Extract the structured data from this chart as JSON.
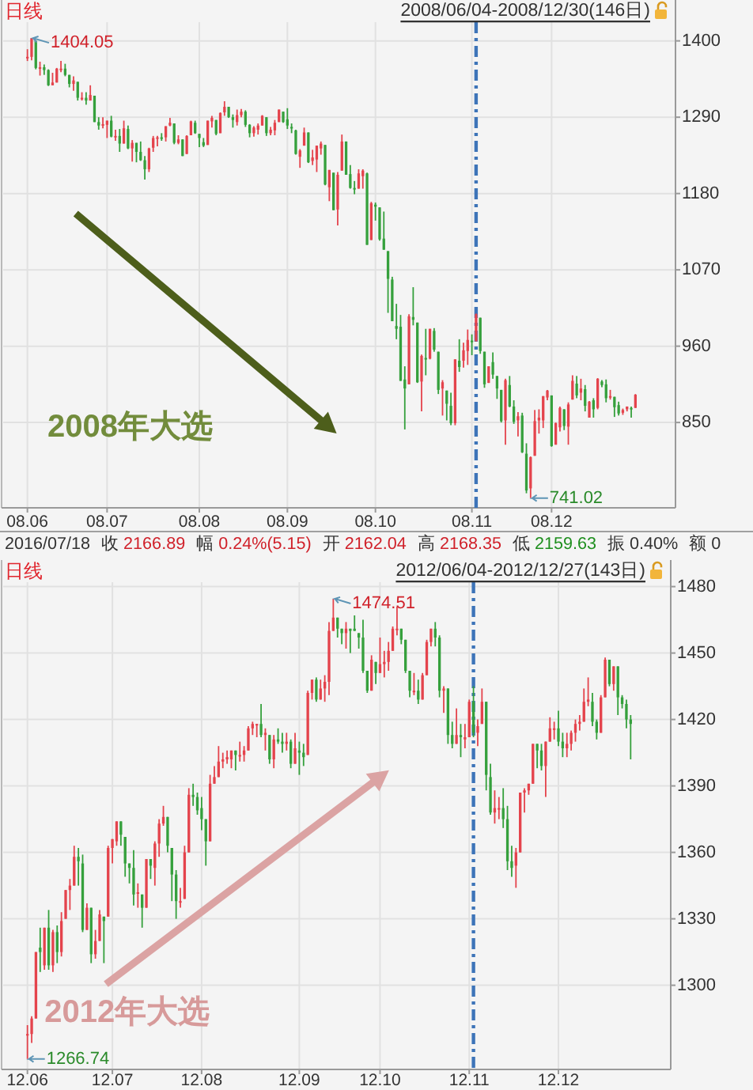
{
  "chart_data": [
    {
      "type": "candlestick",
      "title": "日线",
      "subtitle": "2008/06/04-2008/12/30(146日)",
      "categories": [
        "08.06",
        null,
        null,
        null,
        null,
        null,
        null,
        null,
        null,
        null,
        null,
        null,
        null,
        null,
        null,
        null,
        null,
        null,
        null,
        "08.07",
        null,
        null,
        null,
        null,
        null,
        null,
        null,
        null,
        null,
        null,
        null,
        null,
        null,
        null,
        null,
        null,
        null,
        null,
        null,
        null,
        null,
        "08.08",
        null,
        null,
        null,
        null,
        null,
        null,
        null,
        null,
        null,
        null,
        null,
        null,
        null,
        null,
        null,
        null,
        null,
        null,
        null,
        null,
        "08.09",
        null,
        null,
        null,
        null,
        null,
        null,
        null,
        null,
        null,
        null,
        null,
        null,
        null,
        null,
        null,
        null,
        null,
        null,
        null,
        null,
        "08.10",
        null,
        null,
        null,
        null,
        null,
        null,
        null,
        null,
        null,
        null,
        null,
        null,
        null,
        null,
        null,
        null,
        null,
        null,
        null,
        null,
        null,
        null,
        "08.11",
        null,
        null,
        null,
        null,
        null,
        null,
        null,
        null,
        null,
        null,
        null,
        null,
        null,
        null,
        null,
        null,
        null,
        null,
        "08.12",
        null,
        null,
        null,
        null,
        null,
        null,
        null,
        null,
        null,
        null,
        null,
        null,
        null,
        null,
        null,
        null,
        null,
        null,
        null,
        null
      ],
      "ohlc": [
        [
          1376,
          1388,
          1371,
          1377
        ],
        [
          1377,
          1404.05,
          1372,
          1404
        ],
        [
          1400,
          1401,
          1359,
          1361
        ],
        [
          1360,
          1370,
          1350,
          1362
        ],
        [
          1362,
          1366,
          1351,
          1358
        ],
        [
          1358,
          1359,
          1335,
          1336
        ],
        [
          1336,
          1354,
          1336,
          1340
        ],
        [
          1340,
          1361,
          1340,
          1360
        ],
        [
          1358,
          1371,
          1355,
          1360
        ],
        [
          1360,
          1367,
          1349,
          1351
        ],
        [
          1351,
          1351,
          1333,
          1338
        ],
        [
          1338,
          1349,
          1328,
          1343
        ],
        [
          1341,
          1341,
          1314,
          1318
        ],
        [
          1318,
          1326,
          1314,
          1318
        ],
        [
          1318,
          1326,
          1308,
          1314
        ],
        [
          1314,
          1336,
          1314,
          1322
        ],
        [
          1321,
          1321,
          1283,
          1283
        ],
        [
          1283,
          1290,
          1272,
          1278
        ],
        [
          1278,
          1290,
          1274,
          1280
        ],
        [
          1279,
          1285,
          1260,
          1285
        ],
        [
          1285,
          1292,
          1261,
          1262
        ],
        [
          1262,
          1272,
          1256,
          1263
        ],
        [
          1263,
          1273,
          1240,
          1252
        ],
        [
          1252,
          1285,
          1252,
          1274
        ],
        [
          1273,
          1278,
          1244,
          1245
        ],
        [
          1245,
          1257,
          1226,
          1253
        ],
        [
          1253,
          1253,
          1225,
          1240
        ],
        [
          1240,
          1255,
          1227,
          1228
        ],
        [
          1228,
          1234,
          1200,
          1215
        ],
        [
          1215,
          1246,
          1211,
          1245
        ],
        [
          1246,
          1263,
          1240,
          1260
        ],
        [
          1260,
          1263,
          1248,
          1261
        ],
        [
          1261,
          1267,
          1256,
          1260
        ],
        [
          1261,
          1277,
          1255,
          1277
        ],
        [
          1278,
          1289,
          1277,
          1282
        ],
        [
          1281,
          1281,
          1251,
          1253
        ],
        [
          1253,
          1264,
          1251,
          1258
        ],
        [
          1258,
          1258,
          1234,
          1234
        ],
        [
          1237,
          1264,
          1237,
          1263
        ],
        [
          1264,
          1285,
          1264,
          1284
        ],
        [
          1282,
          1285,
          1266,
          1267
        ],
        [
          1266,
          1266,
          1247,
          1260
        ],
        [
          1254,
          1260,
          1247,
          1249
        ],
        [
          1250,
          1285,
          1250,
          1285
        ],
        [
          1284,
          1292,
          1275,
          1289
        ],
        [
          1286,
          1286,
          1264,
          1266
        ],
        [
          1267,
          1297,
          1267,
          1296
        ],
        [
          1297,
          1313,
          1292,
          1305
        ],
        [
          1305,
          1305,
          1289,
          1290
        ],
        [
          1290,
          1294,
          1275,
          1286
        ],
        [
          1283,
          1301,
          1278,
          1293
        ],
        [
          1293,
          1302,
          1290,
          1298
        ],
        [
          1298,
          1300,
          1276,
          1279
        ],
        [
          1279,
          1280,
          1261,
          1267
        ],
        [
          1267,
          1277,
          1262,
          1275
        ],
        [
          1272,
          1281,
          1265,
          1278
        ],
        [
          1278,
          1293,
          1278,
          1292
        ],
        [
          1290,
          1290,
          1263,
          1267
        ],
        [
          1267,
          1276,
          1264,
          1272
        ],
        [
          1271,
          1286,
          1264,
          1282
        ],
        [
          1283,
          1301,
          1283,
          1301
        ],
        [
          1298,
          1298,
          1282,
          1283
        ],
        [
          1287,
          1303,
          1273,
          1278
        ],
        [
          1276,
          1281,
          1267,
          1275
        ],
        [
          1271,
          1272,
          1236,
          1237
        ],
        [
          1233,
          1244,
          1217,
          1242
        ],
        [
          1249,
          1275,
          1249,
          1268
        ],
        [
          1268,
          1268,
          1224,
          1225
        ],
        [
          1227,
          1243,
          1221,
          1232
        ],
        [
          1229,
          1249,
          1211,
          1249
        ],
        [
          1245,
          1255,
          1236,
          1252
        ],
        [
          1250,
          1250,
          1192,
          1193
        ],
        [
          1189,
          1214,
          1169,
          1214
        ],
        [
          1210,
          1210,
          1156,
          1156
        ],
        [
          1157,
          1211,
          1134,
          1207
        ],
        [
          1213,
          1265,
          1213,
          1255
        ],
        [
          1255,
          1255,
          1207,
          1207
        ],
        [
          1208,
          1221,
          1187,
          1188
        ],
        [
          1188,
          1198,
          1179,
          1186
        ],
        [
          1187,
          1215,
          1187,
          1209
        ],
        [
          1205,
          1215,
          1187,
          1213
        ],
        [
          1209,
          1210,
          1106,
          1106
        ],
        [
          1113,
          1168,
          1113,
          1166
        ],
        [
          1164,
          1167,
          1141,
          1161
        ],
        [
          1160,
          1160,
          1112,
          1114
        ],
        [
          1115,
          1154,
          1099,
          1099
        ],
        [
          1097,
          1097,
          1008,
          1057
        ],
        [
          1056,
          1060,
          996,
          996
        ],
        [
          989,
          1021,
          970,
          985
        ],
        [
          988,
          1005,
          910,
          910
        ],
        [
          912,
          931,
          840,
          899
        ],
        [
          905,
          1006,
          905,
          1003
        ],
        [
          1002,
          1045,
          990,
          998
        ],
        [
          994,
          994,
          907,
          908
        ],
        [
          909,
          948,
          866,
          946
        ],
        [
          943,
          985,
          918,
          941
        ],
        [
          942,
          985,
          941,
          985
        ],
        [
          982,
          986,
          952,
          955
        ],
        [
          952,
          952,
          891,
          897
        ],
        [
          899,
          911,
          860,
          908
        ],
        [
          896,
          896,
          853,
          877
        ],
        [
          874,
          893,
          846,
          849
        ],
        [
          849,
          941,
          846,
          941
        ],
        [
          939,
          970,
          923,
          930
        ],
        [
          939,
          965,
          929,
          954
        ],
        [
          953,
          984,
          933,
          969
        ],
        [
          968,
          977,
          947,
          966
        ],
        [
          967,
          1007,
          967,
          1006
        ],
        [
          1001,
          1001,
          949,
          953
        ],
        [
          952,
          952,
          900,
          905
        ],
        [
          907,
          931,
          907,
          931
        ],
        [
          937,
          951,
          913,
          919
        ],
        [
          917,
          917,
          884,
          899
        ],
        [
          897,
          897,
          850,
          852
        ],
        [
          853,
          913,
          818,
          911
        ],
        [
          904,
          917,
          872,
          873
        ],
        [
          873,
          882,
          848,
          851
        ],
        [
          853,
          865,
          830,
          859
        ],
        [
          860,
          864,
          806,
          807
        ],
        [
          805,
          820,
          748,
          752
        ],
        [
          755,
          801,
          741.02,
          800
        ],
        [
          802,
          868,
          802,
          852
        ],
        [
          853,
          869,
          834,
          857
        ],
        [
          853,
          888,
          842,
          888
        ],
        [
          886,
          897,
          882,
          896
        ],
        [
          889,
          889,
          815,
          816
        ],
        [
          818,
          850,
          818,
          849
        ],
        [
          843,
          873,
          837,
          871
        ],
        [
          869,
          869,
          839,
          845
        ],
        [
          844,
          879,
          818,
          876
        ],
        [
          883,
          918,
          883,
          910
        ],
        [
          906,
          917,
          885,
          889
        ],
        [
          893,
          913,
          882,
          899
        ],
        [
          898,
          904,
          866,
          874
        ],
        [
          857,
          881,
          857,
          880
        ],
        [
          882,
          885,
          857,
          869
        ],
        [
          871,
          914,
          869,
          913
        ],
        [
          909,
          911,
          901,
          904
        ],
        [
          905,
          912,
          879,
          885
        ],
        [
          886,
          897,
          883,
          888
        ],
        [
          887,
          887,
          858,
          872
        ],
        [
          875,
          880,
          860,
          863
        ],
        [
          864,
          870,
          861,
          868
        ],
        [
          869,
          873,
          866,
          873
        ],
        [
          871,
          873,
          857,
          869
        ],
        [
          871,
          891,
          871,
          890
        ]
      ],
      "ylim": [
        727,
        1427
      ],
      "yticks": [
        850,
        960,
        1070,
        1180,
        1290,
        1400
      ],
      "grid": true,
      "annotations": [
        "1404.05",
        "741.02",
        "2008年大选"
      ]
    },
    {
      "type": "candlestick",
      "title": "日线",
      "subtitle": "2012/06/04-2012/12/27(143日)",
      "categories": [
        "12.06",
        null,
        null,
        null,
        null,
        null,
        null,
        null,
        null,
        null,
        null,
        null,
        null,
        null,
        null,
        null,
        null,
        null,
        null,
        null,
        "12.07",
        null,
        null,
        null,
        null,
        null,
        null,
        null,
        null,
        null,
        null,
        null,
        null,
        null,
        null,
        null,
        null,
        null,
        null,
        null,
        null,
        "12.08",
        null,
        null,
        null,
        null,
        null,
        null,
        null,
        null,
        null,
        null,
        null,
        null,
        null,
        null,
        null,
        null,
        null,
        null,
        null,
        null,
        null,
        null,
        "12.09",
        null,
        null,
        null,
        null,
        null,
        null,
        null,
        null,
        null,
        null,
        null,
        null,
        null,
        null,
        null,
        null,
        null,
        null,
        "12.10",
        null,
        null,
        null,
        null,
        null,
        null,
        null,
        null,
        null,
        null,
        null,
        null,
        null,
        null,
        null,
        null,
        null,
        null,
        null,
        null,
        "12.11",
        null,
        null,
        null,
        null,
        null,
        null,
        null,
        null,
        null,
        null,
        null,
        null,
        null,
        null,
        null,
        null,
        null,
        null,
        null,
        null,
        "12.12",
        null,
        null,
        null,
        null,
        null,
        null,
        null,
        null,
        null,
        null,
        null,
        null,
        null,
        null,
        null,
        null,
        null
      ],
      "ohlc": [
        [
          1278,
          1282,
          1266.74,
          1278
        ],
        [
          1278,
          1286,
          1274,
          1285
        ],
        [
          1285,
          1315,
          1285,
          1315
        ],
        [
          1317,
          1326,
          1306,
          1315
        ],
        [
          1309,
          1326,
          1307,
          1326
        ],
        [
          1326,
          1334,
          1307,
          1309
        ],
        [
          1309,
          1325,
          1306,
          1324
        ],
        [
          1324,
          1327,
          1310,
          1315
        ],
        [
          1315,
          1333,
          1313,
          1329
        ],
        [
          1330,
          1343,
          1330,
          1343
        ],
        [
          1343,
          1348,
          1334,
          1345
        ],
        [
          1345,
          1363,
          1345,
          1358
        ],
        [
          1358,
          1362,
          1345,
          1356
        ],
        [
          1355,
          1359,
          1324,
          1325
        ],
        [
          1325,
          1337,
          1325,
          1335
        ],
        [
          1335,
          1335,
          1310,
          1314
        ],
        [
          1314,
          1325,
          1312,
          1320
        ],
        [
          1320,
          1334,
          1320,
          1332
        ],
        [
          1331,
          1331,
          1310,
          1329
        ],
        [
          1331,
          1363,
          1331,
          1362
        ],
        [
          1362,
          1366,
          1355,
          1366
        ],
        [
          1365,
          1374,
          1363,
          1374
        ],
        [
          1374,
          1374,
          1363,
          1368
        ],
        [
          1367,
          1367,
          1349,
          1355
        ],
        [
          1355,
          1355,
          1346,
          1353
        ],
        [
          1353,
          1361,
          1336,
          1341
        ],
        [
          1342,
          1346,
          1335,
          1342
        ],
        [
          1341,
          1341,
          1326,
          1335
        ],
        [
          1335,
          1357,
          1335,
          1357
        ],
        [
          1357,
          1357,
          1348,
          1354
        ],
        [
          1353,
          1365,
          1345,
          1364
        ],
        [
          1364,
          1375,
          1358,
          1373
        ],
        [
          1373,
          1381,
          1372,
          1376
        ],
        [
          1376,
          1376,
          1360,
          1363
        ],
        [
          1362,
          1362,
          1338,
          1350
        ],
        [
          1350,
          1352,
          1330,
          1338
        ],
        [
          1338,
          1344,
          1335,
          1338
        ],
        [
          1339,
          1363,
          1339,
          1360
        ],
        [
          1360,
          1389,
          1360,
          1386
        ],
        [
          1386,
          1391,
          1381,
          1385
        ],
        [
          1385,
          1387,
          1377,
          1379
        ],
        [
          1380,
          1385,
          1370,
          1375
        ],
        [
          1375,
          1375,
          1354,
          1365
        ],
        [
          1365,
          1395,
          1365,
          1391
        ],
        [
          1391,
          1399,
          1391,
          1394
        ],
        [
          1394,
          1408,
          1394,
          1401
        ],
        [
          1401,
          1405,
          1398,
          1402
        ],
        [
          1402,
          1406,
          1400,
          1403
        ],
        [
          1402,
          1406,
          1398,
          1406
        ],
        [
          1406,
          1406,
          1397,
          1404
        ],
        [
          1404,
          1410,
          1401,
          1404
        ],
        [
          1404,
          1408,
          1401,
          1406
        ],
        [
          1406,
          1417,
          1406,
          1416
        ],
        [
          1416,
          1419,
          1413,
          1418
        ],
        [
          1418,
          1418,
          1412,
          1418
        ],
        [
          1418,
          1427,
          1412,
          1413
        ],
        [
          1413,
          1416,
          1406,
          1414
        ],
        [
          1413,
          1413,
          1400,
          1402
        ],
        [
          1402,
          1413,
          1398,
          1411
        ],
        [
          1411,
          1416,
          1409,
          1410
        ],
        [
          1410,
          1414,
          1405,
          1409
        ],
        [
          1409,
          1414,
          1406,
          1410
        ],
        [
          1410,
          1411,
          1398,
          1400
        ],
        [
          1400,
          1414,
          1400,
          1407
        ],
        [
          1406,
          1410,
          1395,
          1405
        ],
        [
          1405,
          1409,
          1399,
          1403
        ],
        [
          1404,
          1433,
          1404,
          1432
        ],
        [
          1432,
          1438,
          1429,
          1438
        ],
        [
          1438,
          1439,
          1428,
          1429
        ],
        [
          1429,
          1438,
          1429,
          1434
        ],
        [
          1434,
          1440,
          1428,
          1437
        ],
        [
          1437,
          1464,
          1431,
          1460
        ],
        [
          1460,
          1474.51,
          1460,
          1466
        ],
        [
          1466,
          1466,
          1457,
          1461
        ],
        [
          1461,
          1461,
          1454,
          1459
        ],
        [
          1459,
          1464,
          1452,
          1461
        ],
        [
          1461,
          1461,
          1450,
          1460
        ],
        [
          1461,
          1467,
          1460,
          1460
        ],
        [
          1459,
          1459,
          1452,
          1457
        ],
        [
          1457,
          1465,
          1441,
          1442
        ],
        [
          1442,
          1442,
          1432,
          1433
        ],
        [
          1433,
          1449,
          1433,
          1447
        ],
        [
          1446,
          1446,
          1436,
          1441
        ],
        [
          1441,
          1457,
          1441,
          1445
        ],
        [
          1445,
          1451,
          1439,
          1446
        ],
        [
          1446,
          1455,
          1442,
          1451
        ],
        [
          1451,
          1462,
          1451,
          1461
        ],
        [
          1461,
          1471,
          1458,
          1461
        ],
        [
          1461,
          1461,
          1454,
          1456
        ],
        [
          1456,
          1456,
          1441,
          1442
        ],
        [
          1442,
          1442,
          1430,
          1433
        ],
        [
          1433,
          1441,
          1431,
          1433
        ],
        [
          1433,
          1438,
          1427,
          1429
        ],
        [
          1429,
          1441,
          1429,
          1440
        ],
        [
          1440,
          1456,
          1440,
          1455
        ],
        [
          1455,
          1461,
          1453,
          1461
        ],
        [
          1461,
          1464,
          1453,
          1457
        ],
        [
          1457,
          1458,
          1430,
          1433
        ],
        [
          1433,
          1435,
          1423,
          1434
        ],
        [
          1434,
          1434,
          1409,
          1413
        ],
        [
          1413,
          1419,
          1407,
          1409
        ],
        [
          1409,
          1425,
          1409,
          1413
        ],
        [
          1413,
          1418,
          1403,
          1412
        ],
        [
          1411,
          1418,
          1407,
          1412
        ],
        [
          1412,
          1429,
          1412,
          1428
        ],
        [
          1428,
          1435,
          1412,
          1414
        ],
        [
          1414,
          1420,
          1408,
          1417
        ],
        [
          1418,
          1434,
          1418,
          1428
        ],
        [
          1428,
          1428,
          1388,
          1395
        ],
        [
          1394,
          1400,
          1377,
          1378
        ],
        [
          1378,
          1388,
          1373,
          1380
        ],
        [
          1380,
          1385,
          1375,
          1380
        ],
        [
          1380,
          1389,
          1371,
          1375
        ],
        [
          1375,
          1381,
          1352,
          1356
        ],
        [
          1356,
          1363,
          1349,
          1353
        ],
        [
          1354,
          1362,
          1344,
          1360
        ],
        [
          1360,
          1387,
          1360,
          1387
        ],
        [
          1387,
          1389,
          1378,
          1388
        ],
        [
          1388,
          1391,
          1386,
          1391
        ],
        [
          1391,
          1409,
          1391,
          1409
        ],
        [
          1409,
          1409,
          1398,
          1406
        ],
        [
          1406,
          1409,
          1397,
          1399
        ],
        [
          1399,
          1410,
          1385,
          1410
        ],
        [
          1410,
          1421,
          1410,
          1416
        ],
        [
          1416,
          1419,
          1411,
          1416
        ],
        [
          1416,
          1424,
          1408,
          1410
        ],
        [
          1410,
          1414,
          1403,
          1407
        ],
        [
          1407,
          1414,
          1403,
          1409
        ],
        [
          1409,
          1415,
          1406,
          1414
        ],
        [
          1414,
          1420,
          1410,
          1418
        ],
        [
          1418,
          1422,
          1415,
          1419
        ],
        [
          1419,
          1434,
          1419,
          1428
        ],
        [
          1428,
          1439,
          1426,
          1429
        ],
        [
          1428,
          1432,
          1417,
          1419
        ],
        [
          1419,
          1420,
          1411,
          1414
        ],
        [
          1414,
          1431,
          1414,
          1430
        ],
        [
          1430,
          1448,
          1430,
          1447
        ],
        [
          1447,
          1447,
          1435,
          1436
        ],
        [
          1436,
          1444,
          1433,
          1444
        ],
        [
          1444,
          1444,
          1422,
          1430
        ],
        [
          1430,
          1431,
          1425,
          1427
        ],
        [
          1427,
          1429,
          1416,
          1420
        ],
        [
          1420,
          1422,
          1402,
          1418
        ]
      ],
      "ylim": [
        1262,
        1482
      ],
      "yticks": [
        1300,
        1330,
        1360,
        1390,
        1420,
        1450,
        1480
      ],
      "grid": true,
      "annotations": [
        "1474.51",
        "1266.74",
        "2012年大选",
        "2016/07/18",
        "收 2166.89",
        "幅 0.24%(5.15)",
        "开 2162.04",
        "高 2168.35",
        "低 2159.63",
        "振 0.40%",
        "额 0"
      ]
    }
  ]
}
